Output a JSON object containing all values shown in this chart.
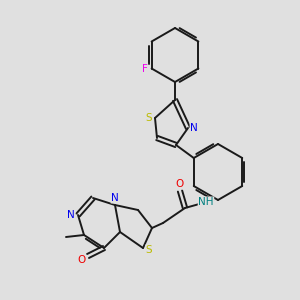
{
  "bg_color": "#e0e0e0",
  "bond_color": "#1a1a1a",
  "atom_colors": {
    "N": "#0000ee",
    "S": "#bbbb00",
    "O": "#ee0000",
    "F": "#ee00ee",
    "NH": "#008080",
    "C": "#1a1a1a"
  },
  "figsize": [
    3.0,
    3.0
  ],
  "dpi": 100
}
